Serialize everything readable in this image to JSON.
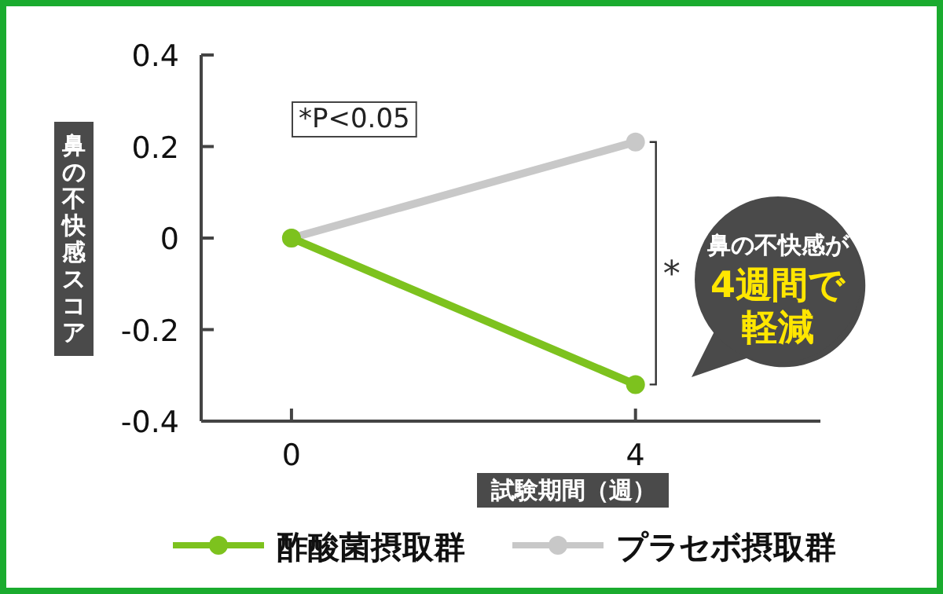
{
  "chart_data": {
    "type": "line",
    "xlabel": "試験期間（週）",
    "ylabel": "鼻の不快感スコア",
    "x": [
      0,
      4
    ],
    "xlim": [
      -1.05,
      6.15
    ],
    "xticks": [
      0,
      4
    ],
    "ylim": [
      -0.4,
      0.4
    ],
    "yticks": [
      -0.4,
      -0.2,
      0,
      0.2,
      0.4
    ],
    "series": [
      {
        "name": "酢酸菌摂取群",
        "color": "#7dc21e",
        "values": [
          0,
          -0.32
        ]
      },
      {
        "name": "プラセボ摂取群",
        "color": "#c8c8c8",
        "values": [
          0,
          0.21
        ]
      }
    ],
    "marker": "circle",
    "line_style": "solid",
    "legend": "bottom",
    "grid": false,
    "annotations": [
      "*P<0.05",
      "*",
      "鼻の不快感が",
      "4週間で",
      "軽減"
    ]
  }
}
